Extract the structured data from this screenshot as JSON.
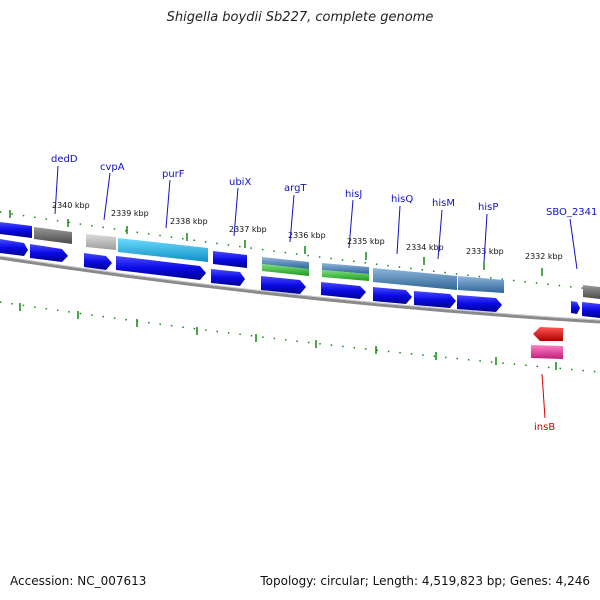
{
  "title": "Shigella boydii Sb227, complete genome",
  "footer": {
    "accession": "Accession: NC_007613",
    "summary": "Topology: circular; Length: 4,519,823 bp; Genes: 4,246"
  },
  "scale_labels": [
    "2340 kbp",
    "2339 kbp",
    "2338 kbp",
    "2337 kbp",
    "2336 kbp",
    "2335 kbp",
    "2334 kbp",
    "2333 kbp",
    "2332 kbp"
  ],
  "genes": [
    {
      "name": "dedD"
    },
    {
      "name": "cvpA"
    },
    {
      "name": "purF"
    },
    {
      "name": "ubiX"
    },
    {
      "name": "argT"
    },
    {
      "name": "hisJ"
    },
    {
      "name": "hisQ"
    },
    {
      "name": "hisM"
    },
    {
      "name": "hisP"
    },
    {
      "name": "SBO_2341"
    },
    {
      "name": "insB"
    }
  ],
  "colors": {
    "cds": "#0a0ae6",
    "gene_grey": "#6e6e6e",
    "gene_lightgrey": "#bdbdbd",
    "gene_cyan": "#22b8e6",
    "gene_steel": "#4a7fb5",
    "gene_green": "#33bb33",
    "insertion": "#e60000",
    "insertion_pink": "#e6339a",
    "backbone": "#808080",
    "ticks": "#118811",
    "label": "#1010c8"
  }
}
